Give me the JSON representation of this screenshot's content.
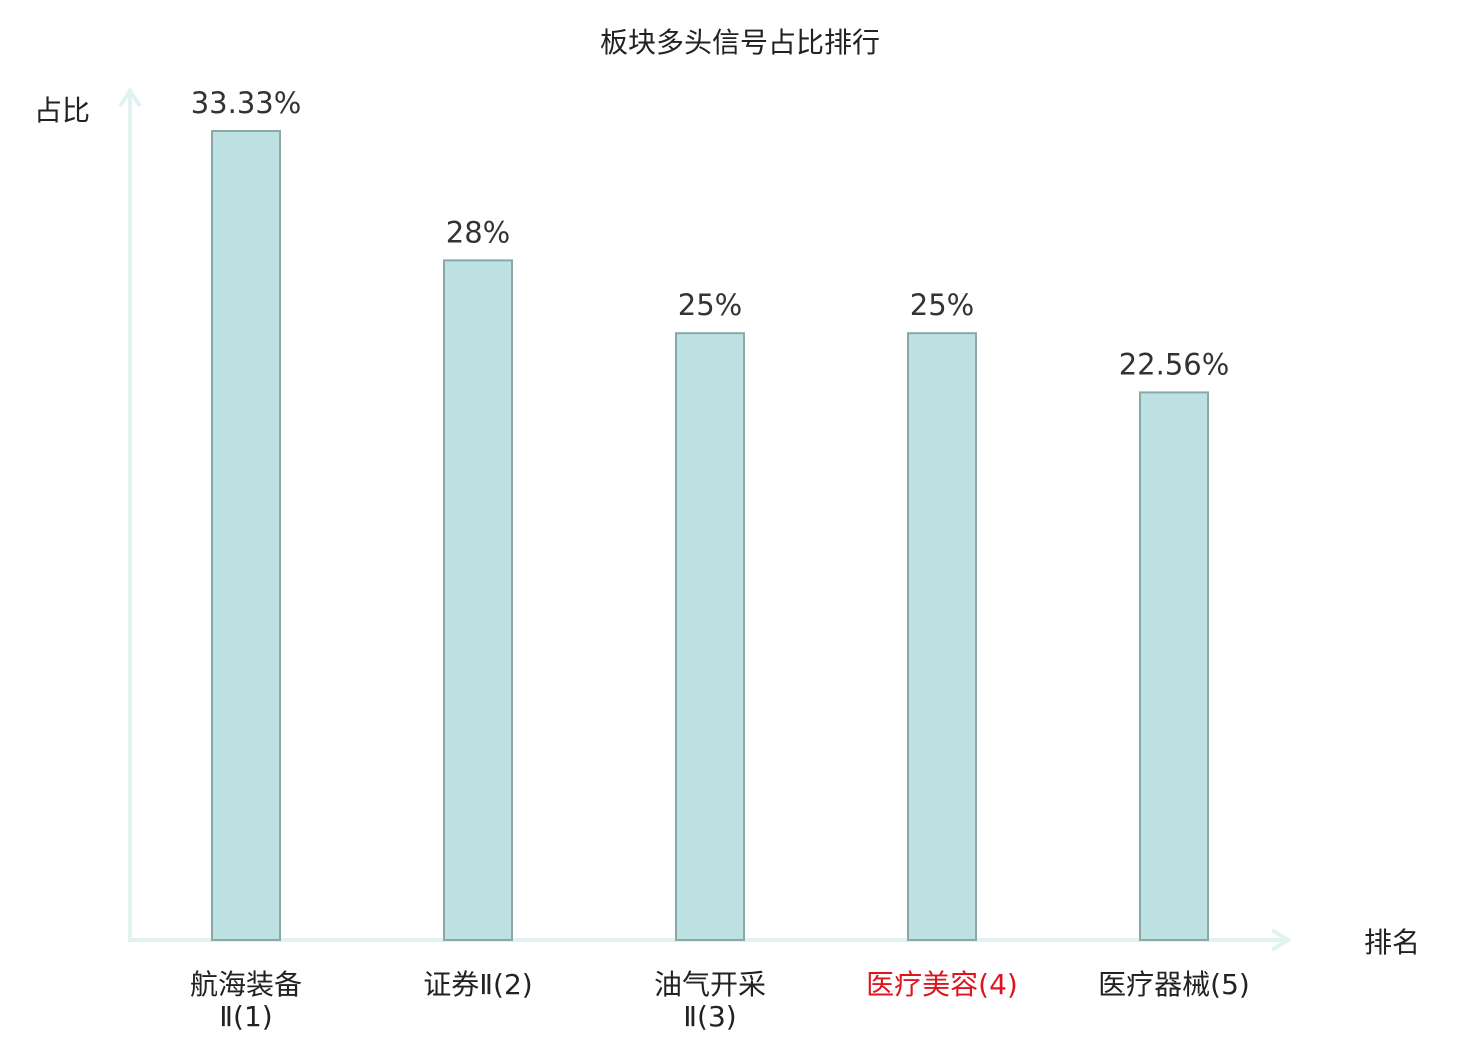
{
  "chart_data": {
    "type": "bar",
    "title": "板块多头信号占比排行",
    "ylabel": "占比",
    "xlabel": "排名",
    "categories": [
      {
        "line1": "航海装备",
        "line2": "Ⅱ(1)",
        "highlight": false
      },
      {
        "line1": "证券Ⅱ(2)",
        "line2": "",
        "highlight": false
      },
      {
        "line1": "油气开采",
        "line2": "Ⅱ(3)",
        "highlight": false
      },
      {
        "line1": "医疗美容(4)",
        "line2": "",
        "highlight": true
      },
      {
        "line1": "医疗器械(5)",
        "line2": "",
        "highlight": false
      }
    ],
    "values": [
      33.33,
      28,
      25,
      25,
      22.56
    ],
    "value_labels": [
      "33.33%",
      "28%",
      "25%",
      "25%",
      "22.56%"
    ],
    "ylim": [
      0,
      35
    ],
    "grid": false,
    "legend": "none"
  },
  "colors": {
    "bar_fill": "#bde1e3",
    "bar_stroke": "#8aa8a8",
    "axis": "#e0f3f1",
    "highlight_text": "#e0141e",
    "text": "#222222"
  }
}
